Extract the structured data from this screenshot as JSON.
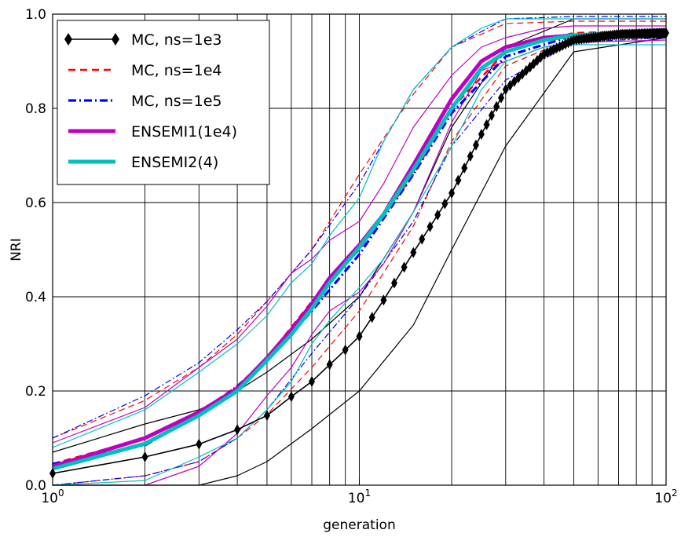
{
  "chart_data": {
    "type": "line",
    "xscale": "log",
    "xlim": [
      1,
      100
    ],
    "ylim": [
      0.0,
      1.0
    ],
    "xlabel": "generation",
    "ylabel": "NRI",
    "grid": true,
    "legend_position": "top-left",
    "xticks": [
      {
        "value": 1,
        "base": "10",
        "exp": "0"
      },
      {
        "value": 10,
        "base": "10",
        "exp": "1"
      },
      {
        "value": 100,
        "base": "10",
        "exp": "2"
      }
    ],
    "yticks": [
      "0.0",
      "0.2",
      "0.4",
      "0.6",
      "0.8",
      "1.0"
    ],
    "legend": [
      {
        "label": "MC, ns=1e3",
        "color": "#000000",
        "style": "solid-diamond"
      },
      {
        "label": "MC, ns=1e4",
        "color": "#ff0000",
        "style": "dashed"
      },
      {
        "label": "MC, ns=1e5",
        "color": "#0000ff",
        "style": "dashdot"
      },
      {
        "label": "ENSEMI1(1e4)",
        "color": "#bf00bf",
        "style": "thick"
      },
      {
        "label": "ENSEMI2(4)",
        "color": "#00bfbf",
        "style": "thick"
      }
    ],
    "series": [
      {
        "name": "MC, ns=1e3",
        "color": "#000000",
        "style": "solid-diamond",
        "x": [
          1,
          2,
          3,
          4,
          5,
          6,
          7,
          8,
          9,
          10,
          12,
          15,
          20,
          25,
          30,
          40,
          50,
          70,
          100
        ],
        "y": [
          0.025,
          0.06,
          0.087,
          0.118,
          0.148,
          0.188,
          0.22,
          0.256,
          0.287,
          0.316,
          0.393,
          0.494,
          0.62,
          0.745,
          0.84,
          0.915,
          0.945,
          0.957,
          0.96
        ]
      },
      {
        "name": "MC, ns=1e3 band upper",
        "color": "#000000",
        "style": "thin",
        "x": [
          1,
          2,
          3,
          4,
          5,
          7,
          10,
          15,
          20,
          30,
          50,
          100
        ],
        "y": [
          0.07,
          0.13,
          0.16,
          0.2,
          0.24,
          0.31,
          0.4,
          0.58,
          0.76,
          0.93,
          0.99,
          0.99
        ]
      },
      {
        "name": "MC, ns=1e3 band lower",
        "color": "#000000",
        "style": "thin",
        "x": [
          1,
          2,
          3,
          4,
          5,
          7,
          10,
          15,
          20,
          30,
          50,
          100
        ],
        "y": [
          0.0,
          0.0,
          0.0,
          0.02,
          0.05,
          0.12,
          0.2,
          0.34,
          0.5,
          0.72,
          0.92,
          0.95
        ]
      },
      {
        "name": "MC, ns=1e4",
        "color": "#ff0000",
        "style": "dashed",
        "x": [
          1,
          2,
          3,
          4,
          5,
          7,
          10,
          15,
          20,
          30,
          50,
          100
        ],
        "y": [
          0.045,
          0.1,
          0.155,
          0.21,
          0.27,
          0.39,
          0.5,
          0.66,
          0.8,
          0.92,
          0.96,
          0.965
        ]
      },
      {
        "name": "MC, ns=1e4 band upper",
        "color": "#ff0000",
        "style": "dashed-thin",
        "x": [
          1,
          2,
          3,
          4,
          5,
          7,
          10,
          15,
          20,
          30,
          50,
          100
        ],
        "y": [
          0.1,
          0.18,
          0.25,
          0.32,
          0.39,
          0.5,
          0.66,
          0.83,
          0.93,
          0.98,
          0.985,
          0.985
        ]
      },
      {
        "name": "MC, ns=1e4 band lower",
        "color": "#ff0000",
        "style": "dashed-thin",
        "x": [
          1,
          2,
          3,
          4,
          5,
          7,
          10,
          15,
          20,
          30,
          50,
          100
        ],
        "y": [
          0.0,
          0.02,
          0.05,
          0.1,
          0.15,
          0.25,
          0.37,
          0.55,
          0.73,
          0.89,
          0.95,
          0.96
        ]
      },
      {
        "name": "MC, ns=1e5",
        "color": "#0000ff",
        "style": "dashdot",
        "x": [
          1,
          2,
          3,
          4,
          5,
          7,
          10,
          15,
          20,
          30,
          50,
          100
        ],
        "y": [
          0.045,
          0.085,
          0.15,
          0.21,
          0.265,
          0.37,
          0.49,
          0.66,
          0.79,
          0.91,
          0.955,
          0.962
        ]
      },
      {
        "name": "MC, ns=1e5 band upper",
        "color": "#0000ff",
        "style": "dashdot-thin",
        "x": [
          1,
          2,
          3,
          4,
          5,
          7,
          10,
          15,
          20,
          30,
          50,
          100
        ],
        "y": [
          0.1,
          0.19,
          0.26,
          0.33,
          0.39,
          0.5,
          0.64,
          0.84,
          0.93,
          0.99,
          0.995,
          0.995
        ]
      },
      {
        "name": "MC, ns=1e5 band lower",
        "color": "#0000ff",
        "style": "dashdot-thin",
        "x": [
          1,
          2,
          3,
          4,
          5,
          7,
          10,
          15,
          20,
          30,
          50,
          100
        ],
        "y": [
          0.0,
          0.02,
          0.05,
          0.1,
          0.16,
          0.28,
          0.4,
          0.56,
          0.72,
          0.86,
          0.94,
          0.95
        ]
      },
      {
        "name": "ENSEMI1(1e4)",
        "color": "#bf00bf",
        "style": "thick",
        "x": [
          1,
          2,
          3,
          4,
          5,
          6,
          7,
          8,
          10,
          12,
          15,
          20,
          25,
          30,
          40,
          50,
          100
        ],
        "y": [
          0.04,
          0.1,
          0.155,
          0.205,
          0.27,
          0.33,
          0.385,
          0.44,
          0.51,
          0.575,
          0.68,
          0.82,
          0.9,
          0.93,
          0.95,
          0.955,
          0.96
        ]
      },
      {
        "name": "ENSEMI1(1e4) band upper",
        "color": "#bf00bf",
        "style": "thin",
        "x": [
          1,
          2,
          3,
          4,
          5,
          6,
          7,
          8,
          10,
          12,
          15,
          20,
          25,
          30,
          40,
          50,
          100
        ],
        "y": [
          0.09,
          0.165,
          0.25,
          0.31,
          0.38,
          0.45,
          0.48,
          0.52,
          0.56,
          0.64,
          0.76,
          0.87,
          0.93,
          0.95,
          0.97,
          0.975,
          0.975
        ]
      },
      {
        "name": "ENSEMI1(1e4) band lower",
        "color": "#bf00bf",
        "style": "thin",
        "x": [
          1,
          2,
          3,
          4,
          5,
          6,
          7,
          8,
          10,
          12,
          15,
          20,
          25,
          30,
          40,
          50,
          100
        ],
        "y": [
          0.0,
          0.0,
          0.04,
          0.11,
          0.19,
          0.25,
          0.32,
          0.37,
          0.41,
          0.47,
          0.58,
          0.77,
          0.88,
          0.9,
          0.93,
          0.94,
          0.945
        ]
      },
      {
        "name": "ENSEMI2(4)",
        "color": "#00bfbf",
        "style": "thick",
        "x": [
          1,
          2,
          3,
          4,
          5,
          6,
          7,
          8,
          10,
          12,
          15,
          20,
          25,
          30,
          40,
          50,
          100
        ],
        "y": [
          0.035,
          0.088,
          0.148,
          0.2,
          0.265,
          0.32,
          0.375,
          0.43,
          0.505,
          0.575,
          0.67,
          0.8,
          0.885,
          0.92,
          0.945,
          0.955,
          0.965
        ]
      },
      {
        "name": "ENSEMI2(4) band upper",
        "color": "#00bfbf",
        "style": "thin",
        "x": [
          1,
          2,
          3,
          4,
          5,
          6,
          7,
          8,
          10,
          12,
          15,
          20,
          25,
          30,
          40,
          50,
          100
        ],
        "y": [
          0.08,
          0.16,
          0.24,
          0.3,
          0.36,
          0.43,
          0.47,
          0.53,
          0.61,
          0.73,
          0.84,
          0.93,
          0.97,
          0.99,
          0.99,
          0.99,
          0.99
        ]
      },
      {
        "name": "ENSEMI2(4) band lower",
        "color": "#00bfbf",
        "style": "thin",
        "x": [
          1,
          2,
          3,
          4,
          5,
          6,
          7,
          8,
          10,
          12,
          15,
          20,
          25,
          30,
          40,
          50,
          100
        ],
        "y": [
          0.0,
          0.01,
          0.06,
          0.1,
          0.16,
          0.22,
          0.3,
          0.35,
          0.42,
          0.48,
          0.58,
          0.72,
          0.84,
          0.9,
          0.93,
          0.935,
          0.935
        ]
      }
    ]
  }
}
